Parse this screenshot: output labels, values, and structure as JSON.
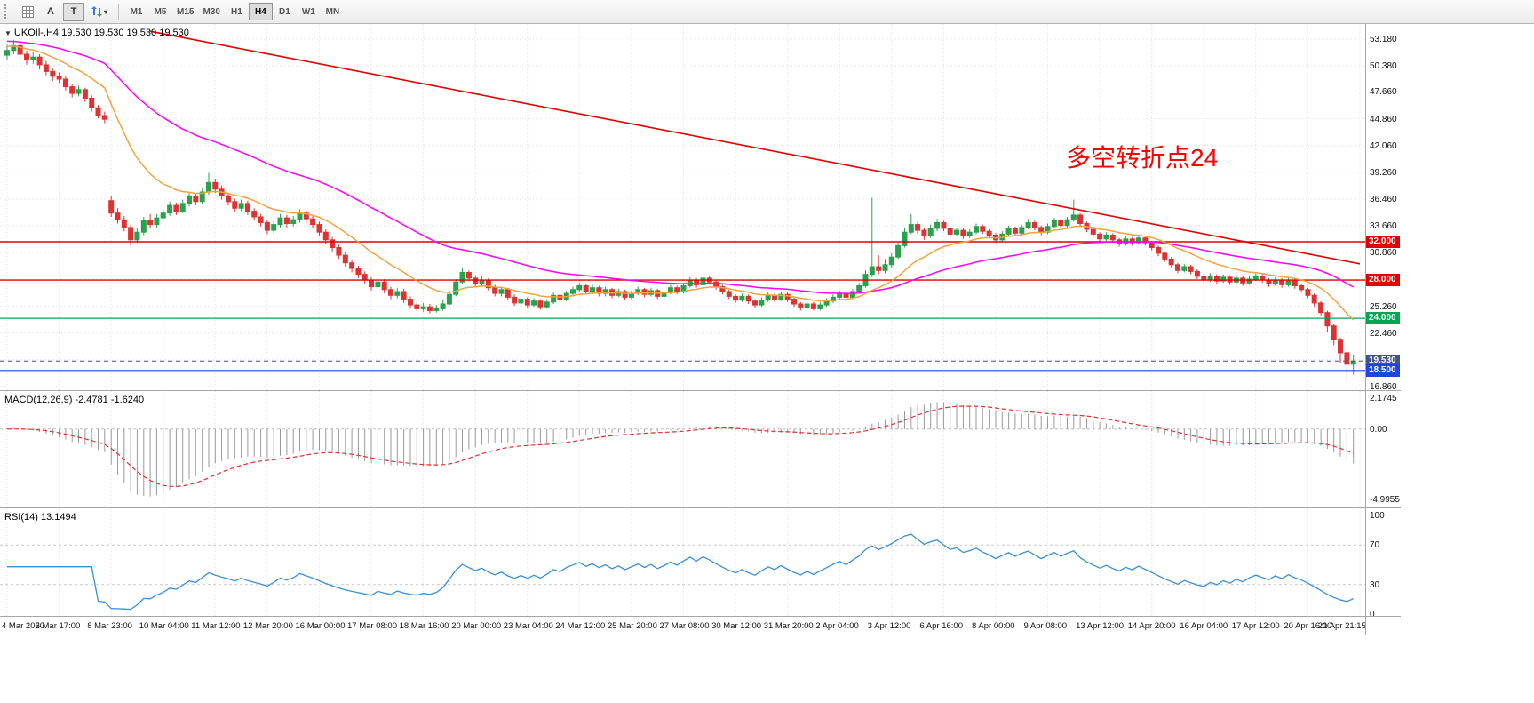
{
  "toolbar": {
    "arrow_label": "A",
    "text_label": "T",
    "dropdown_caret": "▾",
    "timeframes": [
      "M1",
      "M5",
      "M15",
      "M30",
      "H1",
      "H4",
      "D1",
      "W1",
      "MN"
    ],
    "active_timeframe": "H4"
  },
  "chart": {
    "header": {
      "expander": "▼",
      "symbol_period": "UKOIl-,H4",
      "ohlc": "19.530 19.530 19.530 19.530"
    },
    "annotation": {
      "text": "多空转折点24",
      "color": "#ff0000"
    },
    "price_ticks": [
      {
        "v": 53.18,
        "label": "53.180"
      },
      {
        "v": 50.38,
        "label": "50.380"
      },
      {
        "v": 47.66,
        "label": "47.660"
      },
      {
        "v": 44.86,
        "label": "44.860"
      },
      {
        "v": 42.06,
        "label": "42.060"
      },
      {
        "v": 39.26,
        "label": "39.260"
      },
      {
        "v": 36.46,
        "label": "36.460"
      },
      {
        "v": 33.66,
        "label": "33.660"
      },
      {
        "v": 30.86,
        "label": "30.860"
      },
      {
        "v": 25.26,
        "label": "25.260"
      },
      {
        "v": 22.46,
        "label": "22.460"
      },
      {
        "v": 16.86,
        "label": "16.860"
      }
    ],
    "grid_values": [
      53.18,
      50.38,
      47.66,
      44.86,
      42.06,
      39.26,
      36.46,
      33.66,
      30.86,
      28.06,
      25.26,
      22.46,
      19.66,
      16.86
    ],
    "levels": [
      {
        "value": 32.0,
        "label": "32.000",
        "color": "#e00000",
        "badge": "#e00000",
        "style": "solid",
        "width": 1.4
      },
      {
        "value": 28.0,
        "label": "28.000",
        "color": "#e00000",
        "badge": "#e00000",
        "style": "solid",
        "width": 1.4
      },
      {
        "value": 24.0,
        "label": "24.000",
        "color": "#00a651",
        "badge": "#00a651",
        "style": "solid",
        "width": 1.2
      },
      {
        "value": 19.53,
        "label": "19.530",
        "color": "#44518f",
        "badge": "#44518f",
        "style": "dashed",
        "width": 1
      },
      {
        "value": 18.5,
        "label": "18.500",
        "color": "#2144e0",
        "badge": "#2144e0",
        "style": "solid",
        "width": 2.2
      }
    ],
    "trendline": {
      "bar1": 22,
      "v1": 54.0,
      "bar2": 208,
      "v2": 29.7,
      "color": "#e00000"
    },
    "ma_fast": {
      "color": "#f2a33c",
      "alpha": 0.13,
      "seed": 52.5
    },
    "ma_slow": {
      "color": "#ff00ff",
      "alpha": 0.045,
      "seed": 53.0
    }
  },
  "chart_data": {
    "type": "candlestick",
    "symbol": "UKOIl-",
    "timeframe": "H4",
    "ylim": [
      16.5,
      54.2
    ],
    "last_price": 19.53,
    "candles": [
      [
        51.5,
        52.6,
        51,
        52
      ],
      [
        52,
        53.1,
        51.6,
        52.5
      ],
      [
        52.5,
        52.9,
        51.1,
        51.6
      ],
      [
        51.6,
        52,
        50.5,
        51
      ],
      [
        51,
        51.8,
        50.6,
        51.3
      ],
      [
        51.3,
        51.6,
        50,
        50.5
      ],
      [
        50.5,
        50.9,
        49.4,
        49.8
      ],
      [
        49.8,
        50.2,
        48.8,
        49.3
      ],
      [
        49.3,
        49.7,
        48.6,
        49
      ],
      [
        49,
        49.3,
        47.8,
        48.2
      ],
      [
        48.2,
        48.5,
        47.1,
        47.5
      ],
      [
        47.5,
        48.3,
        47.2,
        47.9
      ],
      [
        47.9,
        48.1,
        46.6,
        47
      ],
      [
        47,
        47.3,
        45.6,
        46
      ],
      [
        46,
        46.3,
        44.9,
        45.2
      ],
      [
        45.2,
        45.6,
        44.4,
        44.8
      ],
      [
        36.3,
        36.8,
        34.6,
        35
      ],
      [
        35,
        35.5,
        33.9,
        34.3
      ],
      [
        34.3,
        34.7,
        33.1,
        33.5
      ],
      [
        33.5,
        33.8,
        31.6,
        32.2
      ],
      [
        32.2,
        33.4,
        31.9,
        33
      ],
      [
        33,
        34.6,
        32.7,
        34.2
      ],
      [
        34.2,
        34.9,
        33.4,
        33.8
      ],
      [
        33.8,
        34.9,
        33.5,
        34.5
      ],
      [
        34.5,
        35.4,
        34.2,
        35
      ],
      [
        35,
        36.2,
        34.7,
        35.8
      ],
      [
        35.8,
        36.1,
        34.8,
        35.2
      ],
      [
        35.2,
        36.4,
        35,
        36
      ],
      [
        36,
        37.2,
        35.7,
        36.8
      ],
      [
        36.8,
        37.1,
        35.8,
        36.2
      ],
      [
        36.2,
        37.6,
        35.9,
        37.2
      ],
      [
        37.2,
        39.2,
        36.9,
        38.2
      ],
      [
        38.2,
        38.6,
        37.1,
        37.5
      ],
      [
        37.5,
        37.9,
        36.4,
        36.8
      ],
      [
        36.8,
        37.1,
        35.8,
        36.2
      ],
      [
        36.2,
        36.5,
        35.1,
        35.5
      ],
      [
        35.5,
        36.4,
        35.2,
        36
      ],
      [
        36,
        36.3,
        34.8,
        35.2
      ],
      [
        35.2,
        35.5,
        34.2,
        34.6
      ],
      [
        34.6,
        34.9,
        33.6,
        34
      ],
      [
        34,
        34.3,
        32.8,
        33.2
      ],
      [
        33.2,
        34.2,
        32.9,
        33.8
      ],
      [
        33.8,
        34.9,
        33.5,
        34.5
      ],
      [
        34.5,
        34.8,
        33.5,
        33.9
      ],
      [
        33.9,
        34.7,
        33.6,
        34.3
      ],
      [
        34.3,
        35.4,
        34,
        35
      ],
      [
        35,
        35.3,
        34,
        34.4
      ],
      [
        34.4,
        34.7,
        33.4,
        33.8
      ],
      [
        33.8,
        34.1,
        32.6,
        33
      ],
      [
        33,
        33.3,
        31.8,
        32.2
      ],
      [
        32.2,
        32.5,
        31,
        31.4
      ],
      [
        31.4,
        31.7,
        30.2,
        30.6
      ],
      [
        30.6,
        30.9,
        29.4,
        29.8
      ],
      [
        29.8,
        30.1,
        28.8,
        29.2
      ],
      [
        29.2,
        29.5,
        28.2,
        28.6
      ],
      [
        28.6,
        28.9,
        27.6,
        28
      ],
      [
        28,
        28.3,
        26.9,
        27.3
      ],
      [
        27.3,
        28.2,
        27,
        27.8
      ],
      [
        27.8,
        28.1,
        26.6,
        27
      ],
      [
        27,
        27.3,
        26,
        26.4
      ],
      [
        26.4,
        27.2,
        26.1,
        26.8
      ],
      [
        26.8,
        27.1,
        25.6,
        26
      ],
      [
        26,
        26.3,
        25,
        25.4
      ],
      [
        25.4,
        25.8,
        24.7,
        25
      ],
      [
        25,
        25.6,
        24.7,
        25.2
      ],
      [
        25.2,
        25.5,
        24.5,
        24.8
      ],
      [
        24.8,
        25.4,
        24.6,
        25
      ],
      [
        25,
        25.9,
        24.8,
        25.5
      ],
      [
        25.5,
        26.9,
        25.3,
        26.5
      ],
      [
        26.5,
        28.1,
        26.3,
        27.8
      ],
      [
        27.8,
        29.2,
        27.6,
        28.8
      ],
      [
        28.8,
        29,
        27.9,
        28.2
      ],
      [
        28.2,
        28.5,
        27.3,
        27.6
      ],
      [
        27.6,
        28.4,
        27.4,
        28
      ],
      [
        28,
        28.2,
        26.9,
        27.2
      ],
      [
        27.2,
        27.5,
        26.3,
        26.6
      ],
      [
        26.6,
        27.3,
        26.3,
        27
      ],
      [
        27,
        27.2,
        25.9,
        26.2
      ],
      [
        26.2,
        26.5,
        25.3,
        25.6
      ],
      [
        25.6,
        26.3,
        25.4,
        26
      ],
      [
        26,
        26.2,
        25.1,
        25.4
      ],
      [
        25.4,
        26.1,
        25.2,
        25.8
      ],
      [
        25.8,
        26,
        24.9,
        25.2
      ],
      [
        25.2,
        26,
        25,
        25.7
      ],
      [
        25.7,
        26.7,
        25.5,
        26.4
      ],
      [
        26.4,
        26.6,
        25.7,
        26
      ],
      [
        26,
        26.9,
        25.8,
        26.6
      ],
      [
        26.6,
        27.3,
        26.3,
        27
      ],
      [
        27,
        27.7,
        26.7,
        27.4
      ],
      [
        27.4,
        27.6,
        26.5,
        26.8
      ],
      [
        26.8,
        27.5,
        26.5,
        27.2
      ],
      [
        27.2,
        27.4,
        26.3,
        26.6
      ],
      [
        26.6,
        27.3,
        26.3,
        27
      ],
      [
        27,
        27.2,
        26.1,
        26.4
      ],
      [
        26.4,
        27.1,
        26.2,
        26.8
      ],
      [
        26.8,
        27,
        25.9,
        26.2
      ],
      [
        26.2,
        26.9,
        26,
        26.6
      ],
      [
        26.6,
        27.3,
        26.4,
        27
      ],
      [
        27,
        27.2,
        26.2,
        26.5
      ],
      [
        26.5,
        27.2,
        26.3,
        26.9
      ],
      [
        26.9,
        27.1,
        26,
        26.3
      ],
      [
        26.3,
        27,
        26.1,
        26.7
      ],
      [
        26.7,
        27.5,
        26.5,
        27.2
      ],
      [
        27.2,
        27.4,
        26.5,
        26.8
      ],
      [
        26.8,
        27.7,
        26.6,
        27.4
      ],
      [
        27.4,
        28.3,
        27.2,
        28
      ],
      [
        28,
        28.2,
        27.2,
        27.5
      ],
      [
        27.5,
        28.5,
        27.3,
        28.2
      ],
      [
        28.2,
        28.4,
        27.5,
        27.8
      ],
      [
        27.8,
        28,
        27,
        27.3
      ],
      [
        27.3,
        27.5,
        26.5,
        26.8
      ],
      [
        26.8,
        27,
        26,
        26.3
      ],
      [
        26.3,
        26.5,
        25.6,
        25.9
      ],
      [
        25.9,
        26.6,
        25.7,
        26.3
      ],
      [
        26.3,
        26.5,
        25.5,
        25.8
      ],
      [
        25.8,
        26,
        25.1,
        25.4
      ],
      [
        25.4,
        26.2,
        25.2,
        25.9
      ],
      [
        25.9,
        26.7,
        25.7,
        26.4
      ],
      [
        26.4,
        26.6,
        25.7,
        26
      ],
      [
        26,
        26.8,
        25.8,
        26.5
      ],
      [
        26.5,
        26.7,
        25.7,
        26
      ],
      [
        26,
        26.2,
        25.2,
        25.5
      ],
      [
        25.5,
        25.7,
        24.8,
        25.1
      ],
      [
        25.1,
        25.8,
        24.9,
        25.5
      ],
      [
        25.5,
        25.7,
        24.8,
        25
      ],
      [
        25,
        25.7,
        24.8,
        25.4
      ],
      [
        25.4,
        26.1,
        25.2,
        25.8
      ],
      [
        25.8,
        26.5,
        25.6,
        26.2
      ],
      [
        26.2,
        26.9,
        26,
        26.6
      ],
      [
        26.6,
        26.8,
        25.9,
        26.2
      ],
      [
        26.2,
        27.1,
        26,
        26.8
      ],
      [
        26.8,
        27.7,
        26.6,
        27.4
      ],
      [
        27.4,
        29,
        27.2,
        28.6
      ],
      [
        28.6,
        36.6,
        28.3,
        29.4
      ],
      [
        29.4,
        30.6,
        28.6,
        29
      ],
      [
        29,
        30.2,
        28.7,
        29.6
      ],
      [
        29.6,
        30.8,
        29.3,
        30.4
      ],
      [
        30.4,
        32,
        30.2,
        31.6
      ],
      [
        31.6,
        33.4,
        31.4,
        33
      ],
      [
        33,
        34.9,
        32.8,
        33.8
      ],
      [
        33.8,
        34.1,
        32.8,
        33.2
      ],
      [
        33.2,
        33.5,
        32.2,
        32.6
      ],
      [
        32.6,
        33.8,
        32.4,
        33.4
      ],
      [
        33.4,
        34.4,
        33.1,
        34
      ],
      [
        34,
        34.2,
        33.1,
        33.4
      ],
      [
        33.4,
        33.6,
        32.5,
        32.8
      ],
      [
        32.8,
        33.5,
        32.6,
        33.2
      ],
      [
        33.2,
        33.4,
        32.3,
        32.6
      ],
      [
        32.6,
        33.3,
        32.4,
        33
      ],
      [
        33,
        33.9,
        32.8,
        33.6
      ],
      [
        33.6,
        33.8,
        32.8,
        33.1
      ],
      [
        33.1,
        33.3,
        32.4,
        32.7
      ],
      [
        32.7,
        32.9,
        31.9,
        32.2
      ],
      [
        32.2,
        33.1,
        32,
        32.8
      ],
      [
        32.8,
        33.7,
        32.6,
        33.4
      ],
      [
        33.4,
        33.6,
        32.6,
        32.9
      ],
      [
        32.9,
        33.8,
        32.7,
        33.5
      ],
      [
        33.5,
        34.4,
        33.3,
        34
      ],
      [
        34,
        34.2,
        33.2,
        33.5
      ],
      [
        33.5,
        33.7,
        32.7,
        33
      ],
      [
        33,
        33.9,
        32.8,
        33.6
      ],
      [
        33.6,
        34.5,
        33.4,
        34.2
      ],
      [
        34.2,
        34.4,
        33.4,
        33.7
      ],
      [
        33.7,
        34.6,
        33.5,
        34.3
      ],
      [
        34.3,
        36.4,
        34.1,
        34.8
      ],
      [
        34.8,
        35,
        33.6,
        33.9
      ],
      [
        33.9,
        34.1,
        33,
        33.3
      ],
      [
        33.3,
        33.5,
        32.5,
        32.8
      ],
      [
        32.8,
        33,
        32,
        32.3
      ],
      [
        32.3,
        33,
        32.1,
        32.7
      ],
      [
        32.7,
        32.9,
        31.9,
        32.2
      ],
      [
        32.2,
        32.4,
        31.5,
        31.8
      ],
      [
        31.8,
        32.6,
        31.6,
        32.3
      ],
      [
        32.3,
        32.5,
        31.6,
        31.9
      ],
      [
        31.9,
        32.7,
        31.7,
        32.4
      ],
      [
        32.4,
        32.6,
        31.6,
        31.9
      ],
      [
        31.9,
        32.1,
        31.1,
        31.4
      ],
      [
        31.4,
        31.6,
        30.5,
        30.8
      ],
      [
        30.8,
        31,
        29.9,
        30.2
      ],
      [
        30.2,
        30.4,
        29.3,
        29.6
      ],
      [
        29.6,
        29.8,
        28.7,
        29
      ],
      [
        29,
        29.7,
        28.8,
        29.4
      ],
      [
        29.4,
        29.6,
        28.6,
        28.9
      ],
      [
        28.9,
        29.1,
        28.1,
        28.4
      ],
      [
        28.4,
        28.6,
        27.7,
        28
      ],
      [
        28,
        28.7,
        27.8,
        28.4
      ],
      [
        28.4,
        28.6,
        27.6,
        27.9
      ],
      [
        27.9,
        28.6,
        27.7,
        28.3
      ],
      [
        28.3,
        28.5,
        27.5,
        27.8
      ],
      [
        27.8,
        28.5,
        27.6,
        28.2
      ],
      [
        28.2,
        28.4,
        27.4,
        27.7
      ],
      [
        27.7,
        28.4,
        27.5,
        28.1
      ],
      [
        28.1,
        28.7,
        27.9,
        28.4
      ],
      [
        28.4,
        28.6,
        27.7,
        28
      ],
      [
        28,
        28.2,
        27.3,
        27.6
      ],
      [
        27.6,
        28.3,
        27.4,
        28
      ],
      [
        28,
        28.2,
        27.2,
        27.5
      ],
      [
        27.5,
        28.2,
        27.3,
        27.9
      ],
      [
        27.9,
        28.1,
        27.1,
        27.4
      ],
      [
        27.4,
        27.6,
        26.7,
        27
      ],
      [
        27,
        27.2,
        26.1,
        26.4
      ],
      [
        26.4,
        26.6,
        25.2,
        25.6
      ],
      [
        25.6,
        25.8,
        24.2,
        24.6
      ],
      [
        24.6,
        24.8,
        22.6,
        23.2
      ],
      [
        23.2,
        23.4,
        21.2,
        21.8
      ],
      [
        21.8,
        22,
        19.3,
        20.4
      ],
      [
        20.4,
        20.7,
        17.4,
        19.2
      ],
      [
        19.2,
        20.2,
        18.1,
        19.53
      ]
    ],
    "time_labels": [
      "4 Mar 2020",
      "5 Mar 17:00",
      "8 Mar 23:00",
      "10 Mar 04:00",
      "11 Mar 12:00",
      "12 Mar 20:00",
      "16 Mar 00:00",
      "17 Mar 08:00",
      "18 Mar 16:00",
      "20 Mar 00:00",
      "23 Mar 04:00",
      "24 Mar 12:00",
      "25 Mar 20:00",
      "27 Mar 08:00",
      "30 Mar 12:00",
      "31 Mar 20:00",
      "2 Apr 04:00",
      "3 Apr 12:00",
      "6 Apr 16:00",
      "8 Apr 00:00",
      "9 Apr 08:00",
      "13 Apr 12:00",
      "14 Apr 20:00",
      "16 Apr 04:00",
      "17 Apr 12:00",
      "20 Apr 16:00",
      "21 Apr 21:15"
    ]
  },
  "macd": {
    "header": "MACD(12,26,9) -2.4781 -1.6240",
    "fast": 12,
    "slow": 26,
    "signal": 9,
    "ticks": [
      {
        "v": 2.1745,
        "label": "2.1745"
      },
      {
        "v": 0,
        "label": "0.00"
      },
      {
        "v": -4.9955,
        "label": "-4.9955"
      }
    ],
    "hist_color": "#9a9a9a",
    "signal_color": "#e03131"
  },
  "rsi": {
    "header": "RSI(14) 13.1494",
    "period": 14,
    "current": 13.1494,
    "ticks": [
      {
        "v": 100,
        "label": "100"
      },
      {
        "v": 70,
        "label": "70"
      },
      {
        "v": 30,
        "label": "30"
      },
      {
        "v": 0,
        "label": "0"
      }
    ],
    "levels": [
      70,
      30
    ],
    "color": "#3a8fd9"
  },
  "colors": {
    "up": "#2aa14c",
    "down": "#de3333",
    "grid": "#e4e4e4",
    "panel_border": "#a6a6a6"
  }
}
